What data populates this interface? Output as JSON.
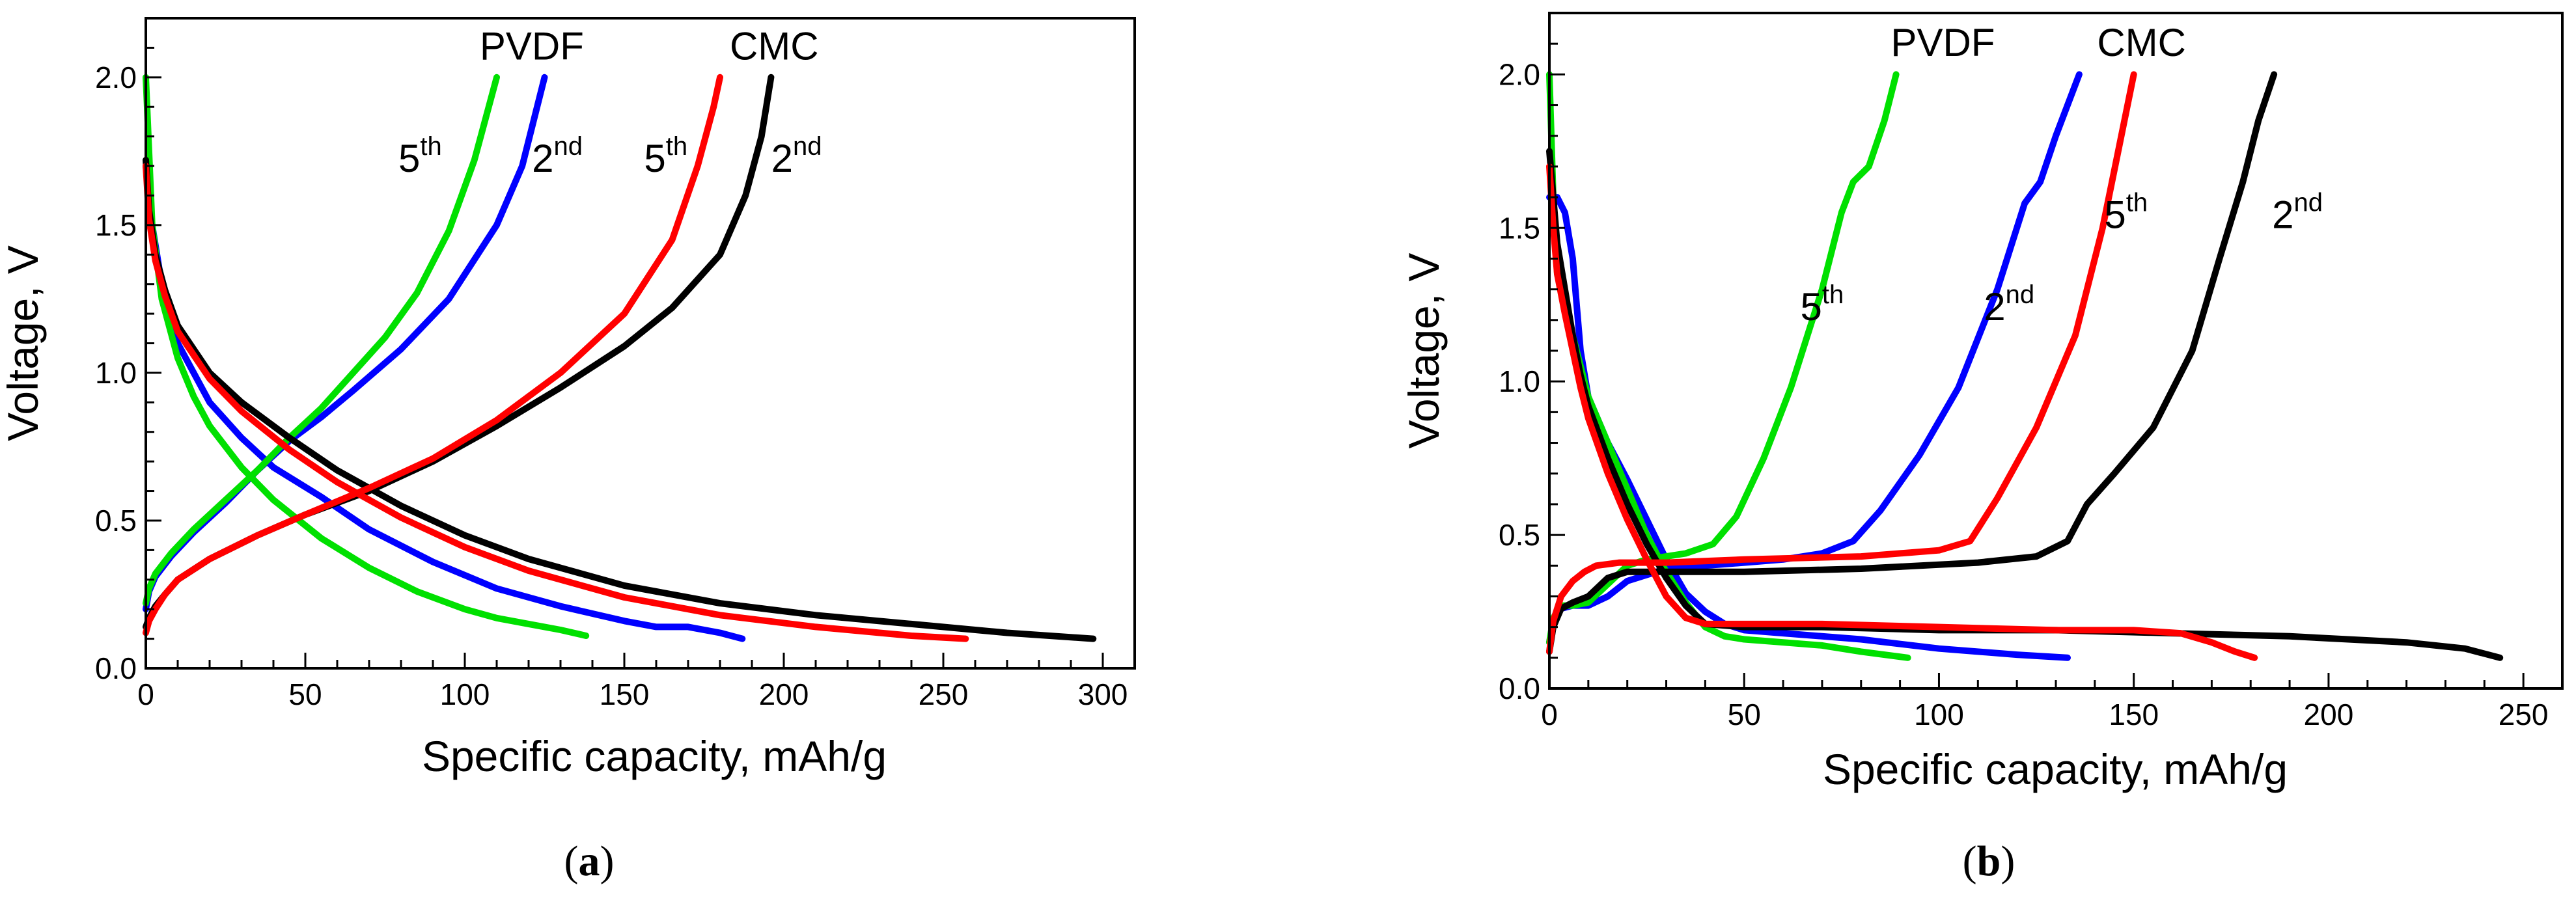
{
  "chart_data": [
    {
      "type": "line",
      "panel_label": {
        "open": "(",
        "letter": "a",
        "close": ")"
      },
      "xlabel": "Specific capacity, mAh/g",
      "ylabel": "Voltage, V",
      "xlim": [
        0,
        310
      ],
      "ylim": [
        0,
        2.2
      ],
      "xticks": [
        0,
        50,
        100,
        150,
        200,
        250,
        300
      ],
      "yticks": [
        0.0,
        0.5,
        1.0,
        1.5,
        2.0
      ],
      "xtick_labels": [
        "0",
        "50",
        "100",
        "150",
        "200",
        "250",
        "300"
      ],
      "ytick_labels": [
        "0.0",
        "0.5",
        "1.0",
        "1.5",
        "2.0"
      ],
      "annotations": [
        {
          "text": "PVDF",
          "sup": "",
          "x": 121,
          "y": 2.06
        },
        {
          "text": "CMC",
          "sup": "",
          "x": 197,
          "y": 2.06
        },
        {
          "text": "5",
          "sup": "th",
          "x": 86,
          "y": 1.68
        },
        {
          "text": "2",
          "sup": "nd",
          "x": 129,
          "y": 1.68
        },
        {
          "text": "5",
          "sup": "th",
          "x": 163,
          "y": 1.68
        },
        {
          "text": "2",
          "sup": "nd",
          "x": 204,
          "y": 1.68
        }
      ],
      "series": [
        {
          "name": "PVDF 2nd discharge",
          "color": "#0000ff",
          "x": [
            0,
            2,
            5,
            10,
            20,
            30,
            40,
            55,
            70,
            90,
            110,
            130,
            150,
            160,
            170,
            180,
            187
          ],
          "y": [
            1.7,
            1.5,
            1.3,
            1.1,
            0.9,
            0.78,
            0.68,
            0.58,
            0.47,
            0.36,
            0.27,
            0.21,
            0.16,
            0.14,
            0.14,
            0.12,
            0.1
          ]
        },
        {
          "name": "PVDF 2nd charge",
          "color": "#0000ff",
          "x": [
            0,
            1,
            3,
            8,
            15,
            25,
            35,
            45,
            55,
            65,
            80,
            95,
            110,
            118,
            125
          ],
          "y": [
            0.2,
            0.26,
            0.31,
            0.38,
            0.46,
            0.56,
            0.67,
            0.77,
            0.85,
            0.94,
            1.08,
            1.25,
            1.5,
            1.7,
            2.0
          ]
        },
        {
          "name": "PVDF 5th discharge",
          "color": "#00e000",
          "x": [
            0,
            2,
            5,
            10,
            15,
            20,
            30,
            40,
            55,
            70,
            85,
            100,
            110,
            120,
            130,
            138
          ],
          "y": [
            2.0,
            1.5,
            1.25,
            1.05,
            0.92,
            0.82,
            0.68,
            0.57,
            0.44,
            0.34,
            0.26,
            0.2,
            0.17,
            0.15,
            0.13,
            0.11
          ]
        },
        {
          "name": "PVDF 5th charge",
          "color": "#00e000",
          "x": [
            0,
            1,
            3,
            8,
            15,
            25,
            35,
            45,
            55,
            65,
            75,
            85,
            95,
            103,
            110
          ],
          "y": [
            0.22,
            0.27,
            0.32,
            0.39,
            0.47,
            0.57,
            0.67,
            0.78,
            0.88,
            1.0,
            1.12,
            1.27,
            1.48,
            1.72,
            2.0
          ]
        },
        {
          "name": "CMC 2nd discharge",
          "color": "#000000",
          "x": [
            0,
            1,
            3,
            6,
            10,
            20,
            30,
            45,
            60,
            80,
            100,
            120,
            150,
            180,
            210,
            240,
            270,
            297
          ],
          "y": [
            1.72,
            1.55,
            1.4,
            1.28,
            1.16,
            1.0,
            0.9,
            0.78,
            0.67,
            0.55,
            0.45,
            0.37,
            0.28,
            0.22,
            0.18,
            0.15,
            0.12,
            0.1
          ]
        },
        {
          "name": "CMC 2nd charge",
          "color": "#000000",
          "x": [
            0,
            1,
            3,
            6,
            10,
            20,
            35,
            50,
            70,
            90,
            110,
            130,
            150,
            165,
            180,
            188,
            193,
            196
          ],
          "y": [
            0.14,
            0.17,
            0.21,
            0.25,
            0.3,
            0.37,
            0.45,
            0.52,
            0.6,
            0.7,
            0.82,
            0.95,
            1.09,
            1.22,
            1.4,
            1.6,
            1.8,
            2.0
          ]
        },
        {
          "name": "CMC 5th discharge",
          "color": "#ff0000",
          "x": [
            0,
            1,
            3,
            6,
            10,
            20,
            30,
            45,
            60,
            80,
            100,
            120,
            150,
            180,
            210,
            240,
            257
          ],
          "y": [
            1.7,
            1.52,
            1.38,
            1.26,
            1.14,
            0.98,
            0.87,
            0.74,
            0.63,
            0.51,
            0.41,
            0.33,
            0.24,
            0.18,
            0.14,
            0.11,
            0.1
          ]
        },
        {
          "name": "CMC 5th charge",
          "color": "#ff0000",
          "x": [
            0,
            1,
            3,
            6,
            10,
            20,
            35,
            50,
            70,
            90,
            110,
            130,
            150,
            165,
            173,
            178,
            180
          ],
          "y": [
            0.12,
            0.16,
            0.2,
            0.25,
            0.3,
            0.37,
            0.45,
            0.52,
            0.61,
            0.71,
            0.84,
            1.0,
            1.2,
            1.45,
            1.7,
            1.9,
            2.0
          ]
        }
      ]
    },
    {
      "type": "line",
      "panel_label": {
        "open": "(",
        "letter": "b",
        "close": ")"
      },
      "xlabel": "Specific capacity, mAh/g",
      "ylabel": "Voltage, V",
      "xlim": [
        0,
        260
      ],
      "ylim": [
        0,
        2.2
      ],
      "xticks": [
        0,
        50,
        100,
        150,
        200,
        250
      ],
      "yticks": [
        0.0,
        0.5,
        1.0,
        1.5,
        2.0
      ],
      "xtick_labels": [
        "0",
        "50",
        "100",
        "150",
        "200",
        "250"
      ],
      "ytick_labels": [
        "0.0",
        "0.5",
        "1.0",
        "1.5",
        "2.0"
      ],
      "annotations": [
        {
          "text": "PVDF",
          "sup": "",
          "x": 101,
          "y": 2.06
        },
        {
          "text": "CMC",
          "sup": "",
          "x": 152,
          "y": 2.06
        },
        {
          "text": "5",
          "sup": "th",
          "x": 70,
          "y": 1.2
        },
        {
          "text": "2",
          "sup": "nd",
          "x": 118,
          "y": 1.2
        },
        {
          "text": "5",
          "sup": "th",
          "x": 148,
          "y": 1.5
        },
        {
          "text": "2",
          "sup": "nd",
          "x": 192,
          "y": 1.5
        }
      ],
      "series": [
        {
          "name": "PVDF 2nd discharge",
          "color": "#0000ff",
          "x": [
            0,
            2,
            4,
            6,
            8,
            10,
            15,
            20,
            25,
            30,
            35,
            40,
            45,
            50,
            60,
            80,
            100,
            120,
            133
          ],
          "y": [
            1.6,
            1.6,
            1.55,
            1.4,
            1.1,
            0.95,
            0.8,
            0.68,
            0.55,
            0.42,
            0.31,
            0.25,
            0.21,
            0.19,
            0.18,
            0.16,
            0.13,
            0.11,
            0.1
          ]
        },
        {
          "name": "PVDF 2nd charge",
          "color": "#0000ff",
          "x": [
            0,
            1,
            3,
            6,
            10,
            15,
            20,
            30,
            40,
            50,
            60,
            70,
            78,
            85,
            95,
            105,
            115,
            122,
            126,
            130,
            136
          ],
          "y": [
            0.15,
            0.22,
            0.26,
            0.27,
            0.27,
            0.3,
            0.35,
            0.39,
            0.4,
            0.41,
            0.42,
            0.44,
            0.48,
            0.58,
            0.76,
            0.98,
            1.3,
            1.58,
            1.65,
            1.8,
            2.0
          ]
        },
        {
          "name": "PVDF 5th discharge",
          "color": "#00e000",
          "x": [
            0,
            1,
            2,
            4,
            6,
            8,
            10,
            15,
            20,
            25,
            30,
            35,
            40,
            45,
            50,
            60,
            70,
            80,
            92
          ],
          "y": [
            2.0,
            1.6,
            1.35,
            1.25,
            1.15,
            1.05,
            0.95,
            0.8,
            0.65,
            0.5,
            0.38,
            0.28,
            0.2,
            0.17,
            0.16,
            0.15,
            0.14,
            0.12,
            0.1
          ]
        },
        {
          "name": "PVDF 5th charge",
          "color": "#00e000",
          "x": [
            0,
            1,
            3,
            6,
            10,
            15,
            20,
            25,
            30,
            35,
            42,
            48,
            55,
            62,
            70,
            75,
            78,
            82,
            86,
            89
          ],
          "y": [
            0.15,
            0.23,
            0.27,
            0.27,
            0.28,
            0.34,
            0.4,
            0.42,
            0.43,
            0.44,
            0.47,
            0.56,
            0.75,
            0.98,
            1.3,
            1.55,
            1.65,
            1.7,
            1.85,
            2.0
          ]
        },
        {
          "name": "CMC 2nd discharge",
          "color": "#000000",
          "x": [
            0,
            1,
            2,
            4,
            6,
            8,
            10,
            15,
            20,
            25,
            30,
            35,
            40,
            50,
            70,
            100,
            130,
            160,
            190,
            220,
            235,
            244
          ],
          "y": [
            1.75,
            1.6,
            1.45,
            1.3,
            1.15,
            1.02,
            0.92,
            0.75,
            0.6,
            0.47,
            0.36,
            0.27,
            0.21,
            0.2,
            0.2,
            0.19,
            0.19,
            0.18,
            0.17,
            0.15,
            0.13,
            0.1
          ]
        },
        {
          "name": "CMC 2nd charge",
          "color": "#000000",
          "x": [
            0,
            1,
            3,
            6,
            10,
            15,
            20,
            30,
            50,
            80,
            110,
            125,
            133,
            138,
            145,
            155,
            165,
            172,
            178,
            182,
            186
          ],
          "y": [
            0.12,
            0.2,
            0.26,
            0.28,
            0.3,
            0.36,
            0.38,
            0.38,
            0.38,
            0.39,
            0.41,
            0.43,
            0.48,
            0.6,
            0.7,
            0.85,
            1.1,
            1.4,
            1.65,
            1.85,
            2.0
          ]
        },
        {
          "name": "CMC 5th discharge",
          "color": "#ff0000",
          "x": [
            0,
            1,
            2,
            4,
            6,
            8,
            10,
            15,
            20,
            25,
            30,
            35,
            40,
            50,
            70,
            100,
            130,
            150,
            162,
            170,
            176,
            181
          ],
          "y": [
            1.7,
            1.5,
            1.35,
            1.22,
            1.1,
            0.98,
            0.88,
            0.7,
            0.55,
            0.42,
            0.3,
            0.23,
            0.21,
            0.21,
            0.21,
            0.2,
            0.19,
            0.19,
            0.18,
            0.15,
            0.12,
            0.1
          ]
        },
        {
          "name": "CMC 5th charge",
          "color": "#ff0000",
          "x": [
            0,
            1,
            3,
            6,
            9,
            12,
            18,
            30,
            50,
            80,
            100,
            108,
            115,
            125,
            135,
            142,
            146,
            150
          ],
          "y": [
            0.12,
            0.22,
            0.3,
            0.35,
            0.38,
            0.4,
            0.41,
            0.41,
            0.42,
            0.43,
            0.45,
            0.48,
            0.62,
            0.85,
            1.15,
            1.5,
            1.75,
            2.0
          ]
        }
      ]
    }
  ]
}
